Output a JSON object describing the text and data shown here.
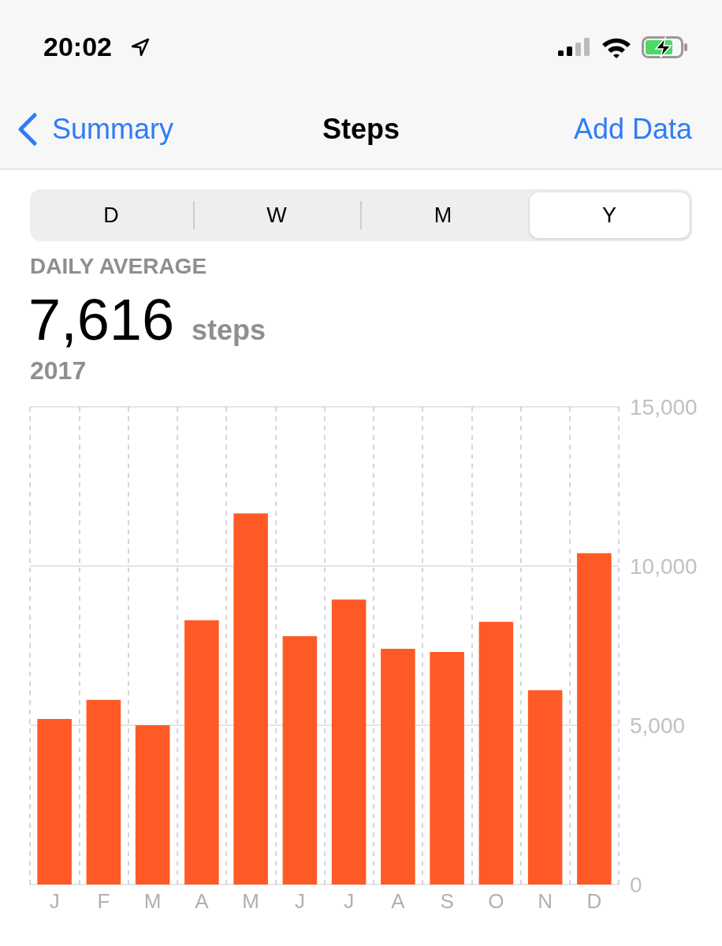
{
  "chart_data": {
    "type": "bar",
    "title": "Steps",
    "annotations": [
      "20:02",
      "Summary",
      "Add Data",
      "D",
      "W",
      "M",
      "Y",
      "DAILY AVERAGE",
      "7,616",
      "steps",
      "2017"
    ],
    "categories": [
      "J",
      "F",
      "M",
      "A",
      "M",
      "J",
      "J",
      "A",
      "S",
      "O",
      "N",
      "D"
    ],
    "values": [
      5200,
      5800,
      5000,
      8300,
      11650,
      7800,
      8950,
      7400,
      7300,
      8250,
      6100,
      10400
    ],
    "color": "#ff5a26",
    "ylim": [
      0,
      15000
    ],
    "yticks": [
      0,
      {
        "value": 5000,
        "label": "5,000"
      },
      {
        "value": 10000,
        "label": "10,000"
      },
      {
        "value": 15000,
        "label": "15,000"
      }
    ],
    "grid": true
  }
}
